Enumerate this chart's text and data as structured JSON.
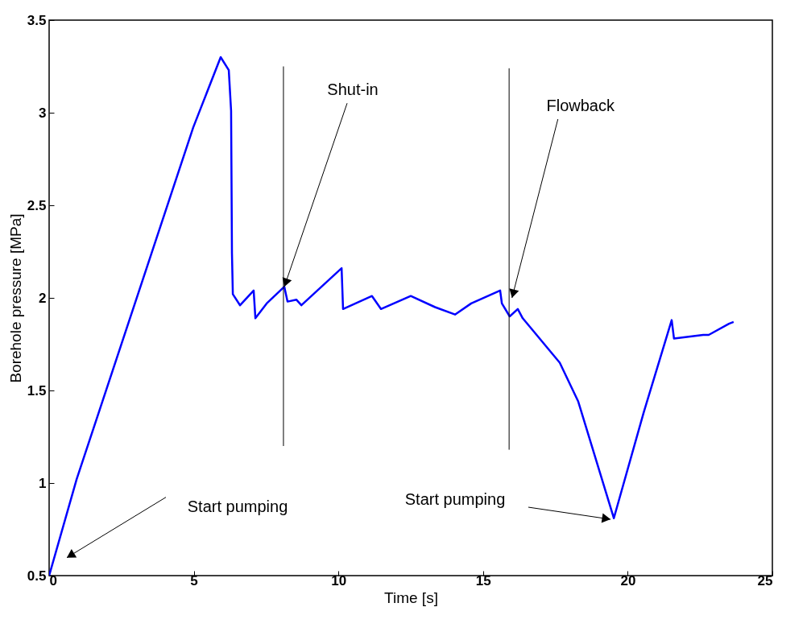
{
  "chart_data": {
    "type": "line",
    "xlabel": "Time [s]",
    "ylabel": "Borehole pressure [MPa]",
    "xlim": [
      0,
      25
    ],
    "ylim": [
      0.5,
      3.5
    ],
    "xticks": [
      0,
      5,
      10,
      15,
      20,
      25
    ],
    "yticks": [
      0.5,
      {
        "value": 1,
        "label": "1"
      },
      1.5,
      {
        "value": 2,
        "label": "2"
      },
      2.5,
      {
        "value": 3,
        "label": "3"
      },
      3.5
    ],
    "grid": false,
    "marker": "none",
    "line_style": "solid",
    "series": [
      {
        "color": "#0000ff",
        "x": [
          0,
          0.95,
          4.98,
          5.93,
          6.21,
          6.29,
          6.32,
          6.35,
          6.6,
          7.07,
          7.13,
          7.52,
          8.13,
          8.24,
          8.55,
          8.72,
          10.11,
          10.16,
          11.16,
          11.47,
          12.5,
          13.34,
          14.03,
          14.59,
          15.59,
          15.65,
          15.92,
          16.2,
          16.37,
          17.65,
          18.29,
          19.52,
          20.55,
          21.52,
          21.6,
          22.61,
          22.8,
          23.5,
          23.66
        ],
        "values": [
          0.5,
          1.02,
          2.92,
          3.3,
          3.23,
          3.01,
          2.24,
          2.02,
          1.96,
          2.04,
          1.89,
          1.97,
          2.06,
          1.98,
          1.99,
          1.96,
          2.16,
          1.94,
          2.01,
          1.94,
          2.01,
          1.95,
          1.91,
          1.97,
          2.04,
          1.97,
          1.9,
          1.94,
          1.89,
          1.65,
          1.44,
          0.81,
          1.38,
          1.88,
          1.78,
          1.8,
          1.8,
          1.86,
          1.87
        ]
      },
      {
        "color": "#000000",
        "x": [
          8.1,
          8.1
        ],
        "values": [
          1.2,
          3.25
        ]
      },
      {
        "color": "#000000",
        "x": [
          15.9,
          15.9
        ],
        "values": [
          1.18,
          3.24
        ]
      }
    ],
    "annotations": [
      {
        "text": "Shut-in",
        "x": 8.13,
        "y": 2.06
      },
      {
        "text": "Flowback",
        "x": 16.0,
        "y": 2.0
      },
      "Start pumping",
      "Start pumping"
    ]
  }
}
